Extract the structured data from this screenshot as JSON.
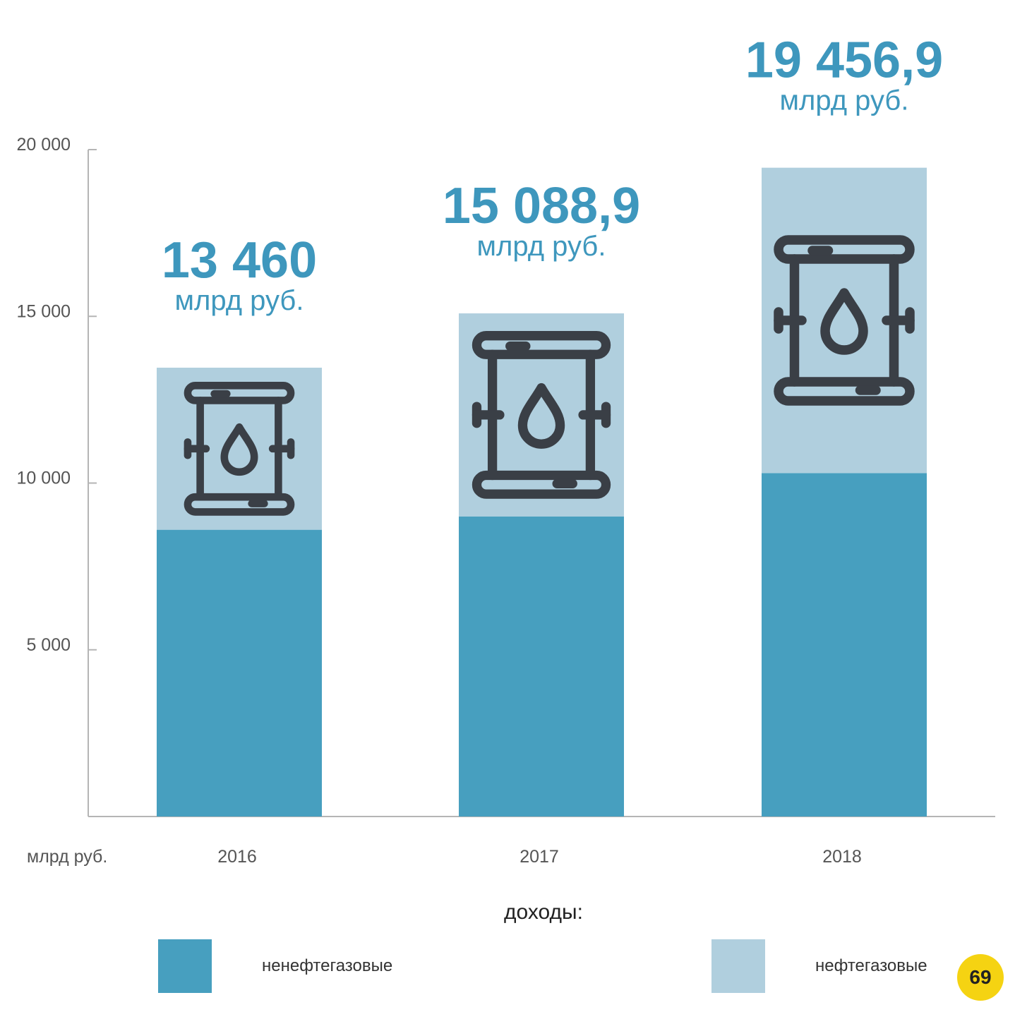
{
  "chart_data": {
    "type": "bar",
    "stacked": true,
    "categories": [
      "2016",
      "2017",
      "2018"
    ],
    "series": [
      {
        "name": "ненефтегазовые",
        "values": [
          8600,
          9000,
          10300
        ],
        "color": "#479fbf"
      },
      {
        "name": "нефтегазовые",
        "values": [
          4860,
          6088.9,
          9156.9
        ],
        "color": "#b0cfde"
      }
    ],
    "totals": [
      "13 460",
      "15 088,9",
      "19 456,9"
    ],
    "total_unit": "млрд руб.",
    "y_ticks": [
      {
        "value": 5000,
        "label": "5 000"
      },
      {
        "value": 10000,
        "label": "10 000"
      },
      {
        "value": 15000,
        "label": "15 000"
      },
      {
        "value": 20000,
        "label": "20 000"
      }
    ],
    "ylim": [
      0,
      20000
    ],
    "y_unit_label": "млрд руб.",
    "legend_title": "доходы:",
    "legend_position": "bottom",
    "grid": false,
    "icon": "oil-barrel-icon"
  },
  "logo_text": "69"
}
